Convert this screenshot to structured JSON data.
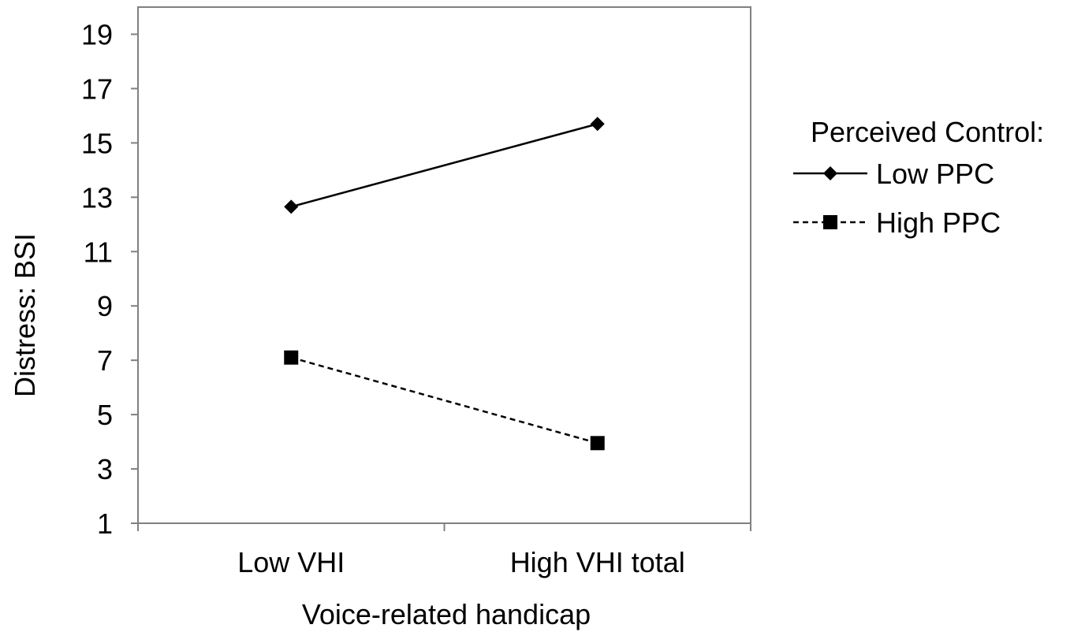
{
  "chart_data": {
    "type": "line",
    "categories": [
      "Low VHI",
      "High VHI total"
    ],
    "series": [
      {
        "name": "Low PPC",
        "values": [
          12.65,
          15.7
        ],
        "line_style": "solid",
        "marker": "diamond"
      },
      {
        "name": "High PPC",
        "values": [
          7.1,
          3.95
        ],
        "line_style": "dashed",
        "marker": "square"
      }
    ],
    "xlabel": "Voice-related handicap",
    "ylabel": "Distress: BSI",
    "ylim": [
      1,
      20
    ],
    "yticks": [
      1,
      3,
      5,
      7,
      9,
      11,
      13,
      15,
      17,
      19
    ],
    "legend": {
      "title": "Perceived Control:",
      "placement": "right"
    },
    "grid": false,
    "colors": {
      "line": "#000000",
      "frame": "#808080"
    }
  }
}
